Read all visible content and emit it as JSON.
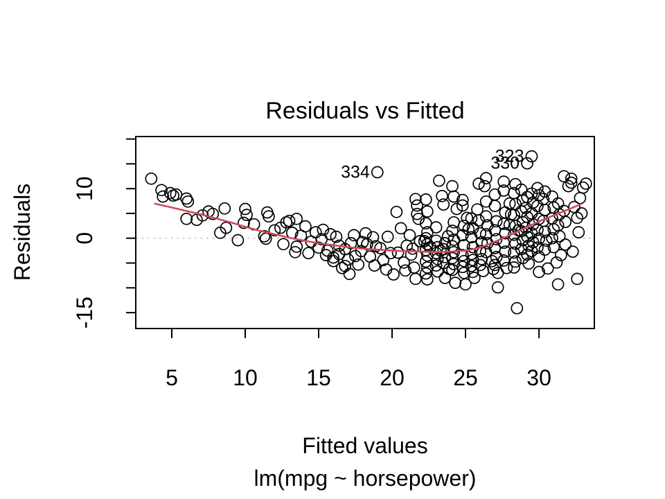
{
  "chart_data": {
    "type": "scatter",
    "title": "Residuals vs Fitted",
    "xlabel": "Fitted values",
    "model_caption": "lm(mpg ~ horsepower)",
    "ylabel": "Residuals",
    "xlim": [
      2.55,
      33.77
    ],
    "ylim": [
      -18.2,
      20.5
    ],
    "xticks": [
      5,
      10,
      15,
      20,
      25,
      30
    ],
    "yticks": [
      -15,
      -10,
      -5,
      0,
      5,
      10,
      15,
      20
    ],
    "ytick_labeled": [
      -15,
      0,
      10
    ],
    "grid": false,
    "legend": "none",
    "colors": {
      "point_stroke": "#000000",
      "smooth_line": "#d04a60",
      "zero_line": "#c8c8c8",
      "axis": "#000000"
    },
    "labeled_points": [
      {
        "label": "334",
        "x": 19.0,
        "y": 13.3
      },
      {
        "label": "323",
        "x": 29.5,
        "y": 16.5
      },
      {
        "label": "330",
        "x": 29.2,
        "y": 15.1
      }
    ],
    "smooth_line": [
      [
        3.8,
        7.0
      ],
      [
        5,
        6.2
      ],
      [
        6,
        5.5
      ],
      [
        7,
        4.8
      ],
      [
        8,
        4.0
      ],
      [
        9,
        3.2
      ],
      [
        10,
        2.3
      ],
      [
        11,
        1.5
      ],
      [
        12,
        0.8
      ],
      [
        13,
        0.1
      ],
      [
        14,
        -0.5
      ],
      [
        15,
        -1.0
      ],
      [
        16,
        -1.4
      ],
      [
        17,
        -1.8
      ],
      [
        18,
        -2.1
      ],
      [
        19,
        -2.3
      ],
      [
        20,
        -2.5
      ],
      [
        21,
        -2.6
      ],
      [
        22,
        -2.7
      ],
      [
        23,
        -2.8
      ],
      [
        24,
        -2.7
      ],
      [
        25,
        -2.5
      ],
      [
        26,
        -1.9
      ],
      [
        27,
        -0.7
      ],
      [
        28,
        0.6
      ],
      [
        29,
        2.0
      ],
      [
        30,
        3.4
      ],
      [
        31,
        4.6
      ],
      [
        32,
        5.8
      ],
      [
        32.9,
        6.9
      ]
    ],
    "points": [
      [
        3.6,
        12.0
      ],
      [
        4.3,
        9.7
      ],
      [
        4.4,
        8.4
      ],
      [
        4.9,
        9.1
      ],
      [
        5.1,
        8.6
      ],
      [
        5.3,
        8.8
      ],
      [
        6.0,
        8.0
      ],
      [
        6.1,
        7.4
      ],
      [
        6.0,
        3.9
      ],
      [
        6.7,
        3.7
      ],
      [
        7.1,
        4.6
      ],
      [
        7.5,
        5.4
      ],
      [
        7.8,
        4.9
      ],
      [
        8.3,
        1.1
      ],
      [
        8.6,
        6.0
      ],
      [
        8.7,
        2.1
      ],
      [
        9.5,
        -0.4
      ],
      [
        9.9,
        3.1
      ],
      [
        10.0,
        5.9
      ],
      [
        10.1,
        4.7
      ],
      [
        10.6,
        2.8
      ],
      [
        11.3,
        0.4
      ],
      [
        11.4,
        -0.1
      ],
      [
        11.5,
        5.2
      ],
      [
        11.6,
        4.4
      ],
      [
        12.0,
        1.6
      ],
      [
        12.4,
        2.1
      ],
      [
        12.6,
        -1.2
      ],
      [
        12.8,
        3.2
      ],
      [
        13.0,
        3.5
      ],
      [
        13.2,
        1.1
      ],
      [
        13.4,
        -2.8
      ],
      [
        13.5,
        3.9
      ],
      [
        13.5,
        -1.7
      ],
      [
        13.8,
        0.5
      ],
      [
        14.1,
        2.4
      ],
      [
        14.3,
        -3.0
      ],
      [
        14.5,
        -0.7
      ],
      [
        14.8,
        1.2
      ],
      [
        15.0,
        -1.9
      ],
      [
        15.2,
        -0.2
      ],
      [
        15.3,
        1.7
      ],
      [
        15.5,
        -3.4
      ],
      [
        15.6,
        -2.5
      ],
      [
        15.8,
        0.8
      ],
      [
        16.0,
        -3.9
      ],
      [
        16.0,
        -4.6
      ],
      [
        16.2,
        0.3
      ],
      [
        16.4,
        -1.5
      ],
      [
        16.4,
        -3.2
      ],
      [
        16.6,
        -6.0
      ],
      [
        16.8,
        -2.2
      ],
      [
        16.8,
        -5.6
      ],
      [
        17.0,
        -4.3
      ],
      [
        17.1,
        -7.2
      ],
      [
        17.2,
        -1.0
      ],
      [
        17.4,
        0.6
      ],
      [
        17.5,
        -3.6
      ],
      [
        17.7,
        -5.3
      ],
      [
        17.9,
        -2.6
      ],
      [
        18.0,
        -0.8
      ],
      [
        18.2,
        1.0
      ],
      [
        18.3,
        -1.2
      ],
      [
        18.5,
        -3.7
      ],
      [
        18.7,
        0.2
      ],
      [
        18.8,
        -5.5
      ],
      [
        18.9,
        -1.6
      ],
      [
        19.2,
        -2.0
      ],
      [
        19.4,
        -4.4
      ],
      [
        19.6,
        -6.3
      ],
      [
        19.7,
        0.3
      ],
      [
        19.9,
        -3.0
      ],
      [
        20.1,
        -7.3
      ],
      [
        20.3,
        5.3
      ],
      [
        20.4,
        -2.9
      ],
      [
        20.6,
        2.0
      ],
      [
        20.8,
        -4.9
      ],
      [
        20.9,
        -6.5
      ],
      [
        21.0,
        -1.5
      ],
      [
        21.2,
        0.6
      ],
      [
        21.3,
        -3.3
      ],
      [
        21.4,
        -2.1
      ],
      [
        21.5,
        -5.9
      ],
      [
        21.6,
        7.9
      ],
      [
        21.6,
        -8.2
      ],
      [
        21.7,
        6.6
      ],
      [
        21.7,
        4.9
      ],
      [
        21.8,
        3.9
      ],
      [
        21.9,
        -0.6
      ],
      [
        22.3,
        7.8
      ],
      [
        22.4,
        5.4
      ],
      [
        22.3,
        3.0
      ],
      [
        22.4,
        1.2
      ],
      [
        22.3,
        0.0
      ],
      [
        22.4,
        -1.2
      ],
      [
        22.3,
        -2.4
      ],
      [
        22.4,
        -3.5
      ],
      [
        22.3,
        -4.7
      ],
      [
        22.4,
        -5.9
      ],
      [
        22.3,
        -7.1
      ],
      [
        22.4,
        -8.3
      ],
      [
        22.2,
        -0.6
      ],
      [
        22.6,
        -1.8
      ],
      [
        23.0,
        2.2
      ],
      [
        23.0,
        -0.5
      ],
      [
        23.1,
        -1.8
      ],
      [
        23.0,
        -3.0
      ],
      [
        23.1,
        -4.2
      ],
      [
        23.0,
        -5.5
      ],
      [
        23.1,
        -6.7
      ],
      [
        23.2,
        11.6
      ],
      [
        23.3,
        -2.5
      ],
      [
        23.4,
        8.5
      ],
      [
        23.5,
        6.8
      ],
      [
        23.6,
        -1.0
      ],
      [
        23.5,
        -2.2
      ],
      [
        23.6,
        -3.8
      ],
      [
        23.5,
        -5.0
      ],
      [
        23.6,
        -8.0
      ],
      [
        23.8,
        0.4
      ],
      [
        23.9,
        -6.2
      ],
      [
        24.1,
        10.5
      ],
      [
        24.2,
        8.4
      ],
      [
        24.2,
        3.2
      ],
      [
        24.1,
        1.5
      ],
      [
        24.2,
        -0.3
      ],
      [
        24.1,
        -1.6
      ],
      [
        24.2,
        -2.8
      ],
      [
        24.1,
        -4.0
      ],
      [
        24.2,
        -5.2
      ],
      [
        24.1,
        -6.4
      ],
      [
        24.3,
        -9.0
      ],
      [
        24.4,
        5.9
      ],
      [
        24.8,
        7.7
      ],
      [
        24.8,
        6.6
      ],
      [
        24.9,
        2.5
      ],
      [
        24.8,
        0.6
      ],
      [
        24.9,
        -1.4
      ],
      [
        24.8,
        -3.4
      ],
      [
        24.9,
        -4.6
      ],
      [
        24.8,
        -5.8
      ],
      [
        24.9,
        -7.0
      ],
      [
        25.0,
        -9.3
      ],
      [
        25.1,
        4.1
      ],
      [
        25.2,
        1.8
      ],
      [
        25.4,
        4.0
      ],
      [
        25.5,
        2.0
      ],
      [
        25.4,
        0.2
      ],
      [
        25.5,
        -1.8
      ],
      [
        25.4,
        -3.2
      ],
      [
        25.5,
        -4.4
      ],
      [
        25.4,
        -5.6
      ],
      [
        25.5,
        -6.8
      ],
      [
        25.6,
        -8.0
      ],
      [
        25.8,
        5.8
      ],
      [
        25.9,
        11.0
      ],
      [
        25.9,
        3.6
      ],
      [
        26.0,
        1.0
      ],
      [
        26.1,
        -0.8
      ],
      [
        26.0,
        -2.6
      ],
      [
        26.1,
        -4.2
      ],
      [
        26.0,
        -5.4
      ],
      [
        26.2,
        -6.6
      ],
      [
        26.3,
        10.5
      ],
      [
        26.4,
        12.1
      ],
      [
        26.4,
        7.4
      ],
      [
        26.4,
        4.4
      ],
      [
        26.5,
        2.6
      ],
      [
        26.4,
        0.8
      ],
      [
        26.5,
        -1.0
      ],
      [
        26.4,
        -2.8
      ],
      [
        26.8,
        -4.6
      ],
      [
        26.9,
        -6.2
      ],
      [
        27.0,
        8.8
      ],
      [
        27.0,
        6.5
      ],
      [
        27.1,
        3.4
      ],
      [
        27.0,
        1.6
      ],
      [
        27.1,
        -0.2
      ],
      [
        27.0,
        -2.0
      ],
      [
        27.1,
        -3.8
      ],
      [
        27.0,
        -5.4
      ],
      [
        27.2,
        -7.0
      ],
      [
        27.2,
        -9.9
      ],
      [
        27.6,
        11.4
      ],
      [
        27.6,
        9.6
      ],
      [
        27.7,
        5.2
      ],
      [
        27.6,
        2.9
      ],
      [
        27.7,
        1.0
      ],
      [
        27.6,
        -0.9
      ],
      [
        27.7,
        -2.7
      ],
      [
        27.6,
        -4.5
      ],
      [
        27.8,
        -6.0
      ],
      [
        28.0,
        7.0
      ],
      [
        28.1,
        4.8
      ],
      [
        28.0,
        2.7
      ],
      [
        28.4,
        10.9
      ],
      [
        28.3,
        9.1
      ],
      [
        28.4,
        6.9
      ],
      [
        28.3,
        4.7
      ],
      [
        28.4,
        2.5
      ],
      [
        28.3,
        0.7
      ],
      [
        28.4,
        -1.1
      ],
      [
        28.3,
        -2.9
      ],
      [
        28.4,
        -4.7
      ],
      [
        28.3,
        -5.9
      ],
      [
        28.5,
        -14.1
      ],
      [
        28.6,
        1.6
      ],
      [
        28.8,
        9.8
      ],
      [
        28.9,
        7.6
      ],
      [
        28.8,
        5.4
      ],
      [
        28.9,
        3.2
      ],
      [
        28.8,
        1.4
      ],
      [
        28.9,
        -0.4
      ],
      [
        28.8,
        -2.2
      ],
      [
        28.9,
        -4.0
      ],
      [
        29.2,
        8.3
      ],
      [
        29.1,
        6.1
      ],
      [
        29.2,
        4.3
      ],
      [
        29.1,
        2.1
      ],
      [
        29.2,
        0.3
      ],
      [
        29.3,
        -1.5
      ],
      [
        29.2,
        -3.3
      ],
      [
        29.3,
        -5.1
      ],
      [
        29.5,
        9.0
      ],
      [
        29.6,
        7.2
      ],
      [
        29.5,
        5.0
      ],
      [
        29.6,
        2.8
      ],
      [
        29.5,
        1.0
      ],
      [
        29.6,
        -0.8
      ],
      [
        29.5,
        -2.6
      ],
      [
        30.0,
        -6.8
      ],
      [
        29.9,
        10.1
      ],
      [
        30.0,
        8.7
      ],
      [
        29.9,
        6.5
      ],
      [
        30.0,
        3.9
      ],
      [
        29.9,
        1.7
      ],
      [
        30.0,
        -0.1
      ],
      [
        29.9,
        -1.9
      ],
      [
        30.0,
        -3.7
      ],
      [
        30.3,
        7.9
      ],
      [
        30.4,
        9.4
      ],
      [
        30.4,
        5.7
      ],
      [
        30.3,
        3.5
      ],
      [
        30.4,
        1.3
      ],
      [
        30.5,
        -0.5
      ],
      [
        30.4,
        -2.3
      ],
      [
        30.6,
        -6.1
      ],
      [
        30.9,
        8.4
      ],
      [
        31.0,
        6.2
      ],
      [
        30.9,
        4.0
      ],
      [
        31.0,
        1.8
      ],
      [
        30.9,
        0.0
      ],
      [
        31.0,
        -1.8
      ],
      [
        31.2,
        -4.9
      ],
      [
        31.3,
        -9.3
      ],
      [
        31.3,
        7.0
      ],
      [
        31.4,
        4.8
      ],
      [
        31.3,
        2.6
      ],
      [
        31.4,
        0.4
      ],
      [
        31.5,
        -3.4
      ],
      [
        31.7,
        12.5
      ],
      [
        31.7,
        5.5
      ],
      [
        31.8,
        3.3
      ],
      [
        31.8,
        -1.3
      ],
      [
        32.0,
        10.5
      ],
      [
        32.2,
        12.0
      ],
      [
        32.2,
        11.2
      ],
      [
        32.3,
        -2.7
      ],
      [
        32.4,
        6.3
      ],
      [
        32.6,
        4.1
      ],
      [
        32.6,
        -8.2
      ],
      [
        32.7,
        1.2
      ],
      [
        32.8,
        8.1
      ],
      [
        32.9,
        5.0
      ],
      [
        33.0,
        10.2
      ],
      [
        33.2,
        11.0
      ]
    ]
  }
}
